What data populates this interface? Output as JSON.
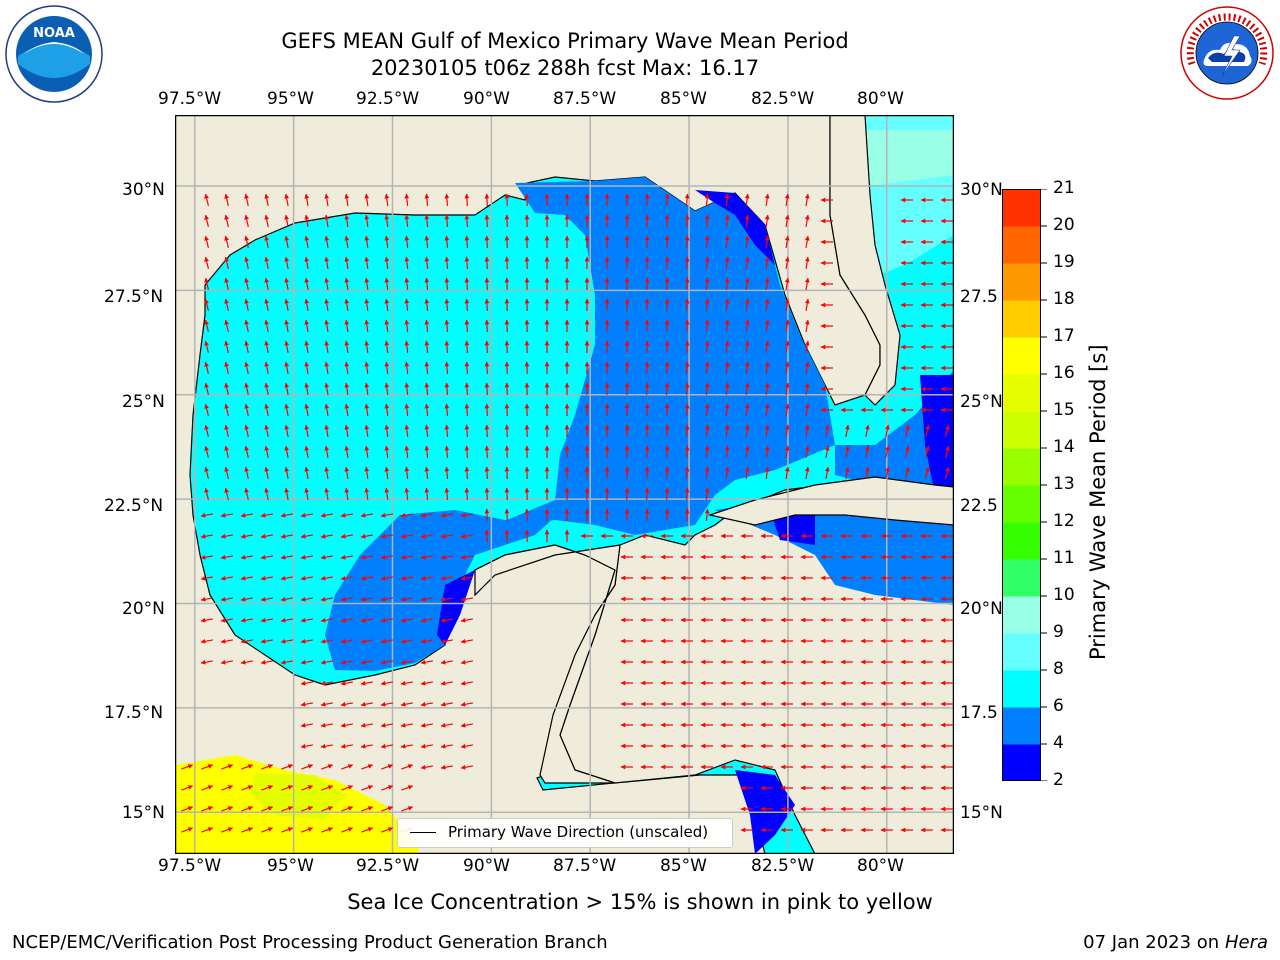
{
  "title": {
    "line1": "GEFS MEAN Gulf of Mexico Primary Wave Mean Period",
    "line2": "20230105 t06z 288h fcst   Max: 16.17"
  },
  "logos": {
    "left": {
      "icon": "noaa-logo-icon",
      "text": "NOAA"
    },
    "right": {
      "icon": "nws-logo-icon",
      "ring_text": "NATIONAL WEATHER SERVICE"
    }
  },
  "map": {
    "lon_ticks": [
      "97.5°W",
      "95°W",
      "92.5°W",
      "90°W",
      "87.5°W",
      "85°W",
      "82.5°W",
      "80°W"
    ],
    "lat_ticks_left": [
      "30°N",
      "27.5°N",
      "25°N",
      "22.5°N",
      "20°N",
      "17.5°N",
      "15°N"
    ],
    "lat_ticks_right": [
      "30°N",
      "27.5",
      "25°N",
      "22.5",
      "20°N",
      "17.5",
      "15°N"
    ],
    "lon_range": [
      -98,
      -78.3
    ],
    "lat_range": [
      14,
      31.7
    ],
    "land_color": "#efecdc",
    "legend_label": "Primary Wave Direction (unscaled)",
    "arrow_color": "#ff0000"
  },
  "colorbar": {
    "label": "Primary Wave Mean Period [s]",
    "ticks": [
      "2",
      "4",
      "6",
      "8",
      "9",
      "10",
      "11",
      "12",
      "13",
      "14",
      "15",
      "16",
      "17",
      "18",
      "19",
      "20",
      "21"
    ],
    "colors": [
      "#0000ff",
      "#0080ff",
      "#00ffff",
      "#66ffff",
      "#99ffe6",
      "#33ff66",
      "#33ff00",
      "#66ff00",
      "#99ff00",
      "#ccff00",
      "#e6ff00",
      "#ffff00",
      "#ffcc00",
      "#ff9900",
      "#ff6600",
      "#ff3300",
      "#ff0000"
    ]
  },
  "caption": "Sea Ice Concentration > 15% is shown in pink to yellow",
  "footer": {
    "left": "NCEP/EMC/Verification Post Processing Product Generation Branch",
    "right_date": "07 Jan 2023 on ",
    "right_machine": "Hera"
  }
}
